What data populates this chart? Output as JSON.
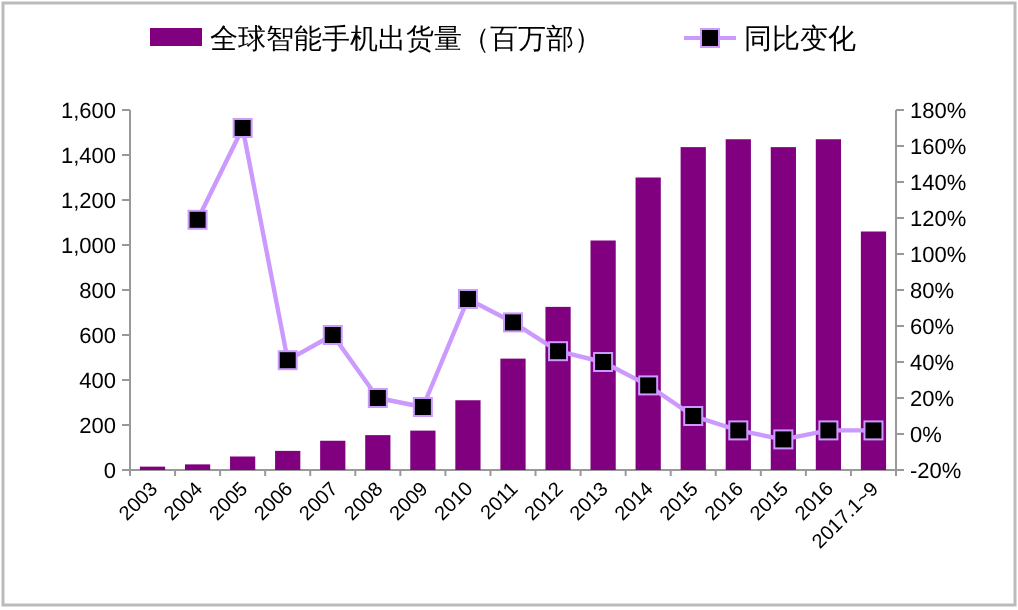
{
  "chart_data": {
    "type": "bar",
    "categories": [
      "2003",
      "2004",
      "2005",
      "2006",
      "2007",
      "2008",
      "2009",
      "2010",
      "2011",
      "2012",
      "2013",
      "2014",
      "2015",
      "2016",
      "2015",
      "2016",
      "2017.1~9"
    ],
    "series": [
      {
        "name": "全球智能手机出货量（百万部）",
        "color": "#800080",
        "values": [
          15,
          25,
          60,
          85,
          130,
          155,
          175,
          310,
          495,
          725,
          1020,
          1300,
          1435,
          1470,
          1435,
          1470,
          1060
        ]
      },
      {
        "name": "同比变化",
        "type": "line",
        "axis": "y2",
        "color": "#cc99ff",
        "values": [
          null,
          119,
          170,
          41,
          55,
          20,
          15,
          75,
          62,
          46,
          40,
          27,
          10,
          2,
          -3,
          2,
          2
        ]
      }
    ],
    "ylim": [
      0,
      1600
    ],
    "yticks": [
      0,
      200,
      400,
      600,
      800,
      {
        "value": 1000,
        "label": "1,000"
      },
      {
        "value": 1200,
        "label": "1,200"
      },
      {
        "value": 1400,
        "label": "1,400"
      },
      {
        "value": 1600,
        "label": "1,600"
      }
    ],
    "y2lim": [
      -20,
      180
    ],
    "y2ticks": [
      {
        "value": -20,
        "label": "-20%"
      },
      {
        "value": 0,
        "label": "0%"
      },
      {
        "value": 20,
        "label": "20%"
      },
      {
        "value": 40,
        "label": "40%"
      },
      {
        "value": 60,
        "label": "60%"
      },
      {
        "value": 80,
        "label": "80%"
      },
      {
        "value": 100,
        "label": "100%"
      },
      {
        "value": 120,
        "label": "120%"
      },
      {
        "value": 140,
        "label": "140%"
      },
      {
        "value": 160,
        "label": "160%"
      },
      {
        "value": 180,
        "label": "180%"
      }
    ],
    "marker": "square",
    "legend": "top",
    "grid": false
  }
}
